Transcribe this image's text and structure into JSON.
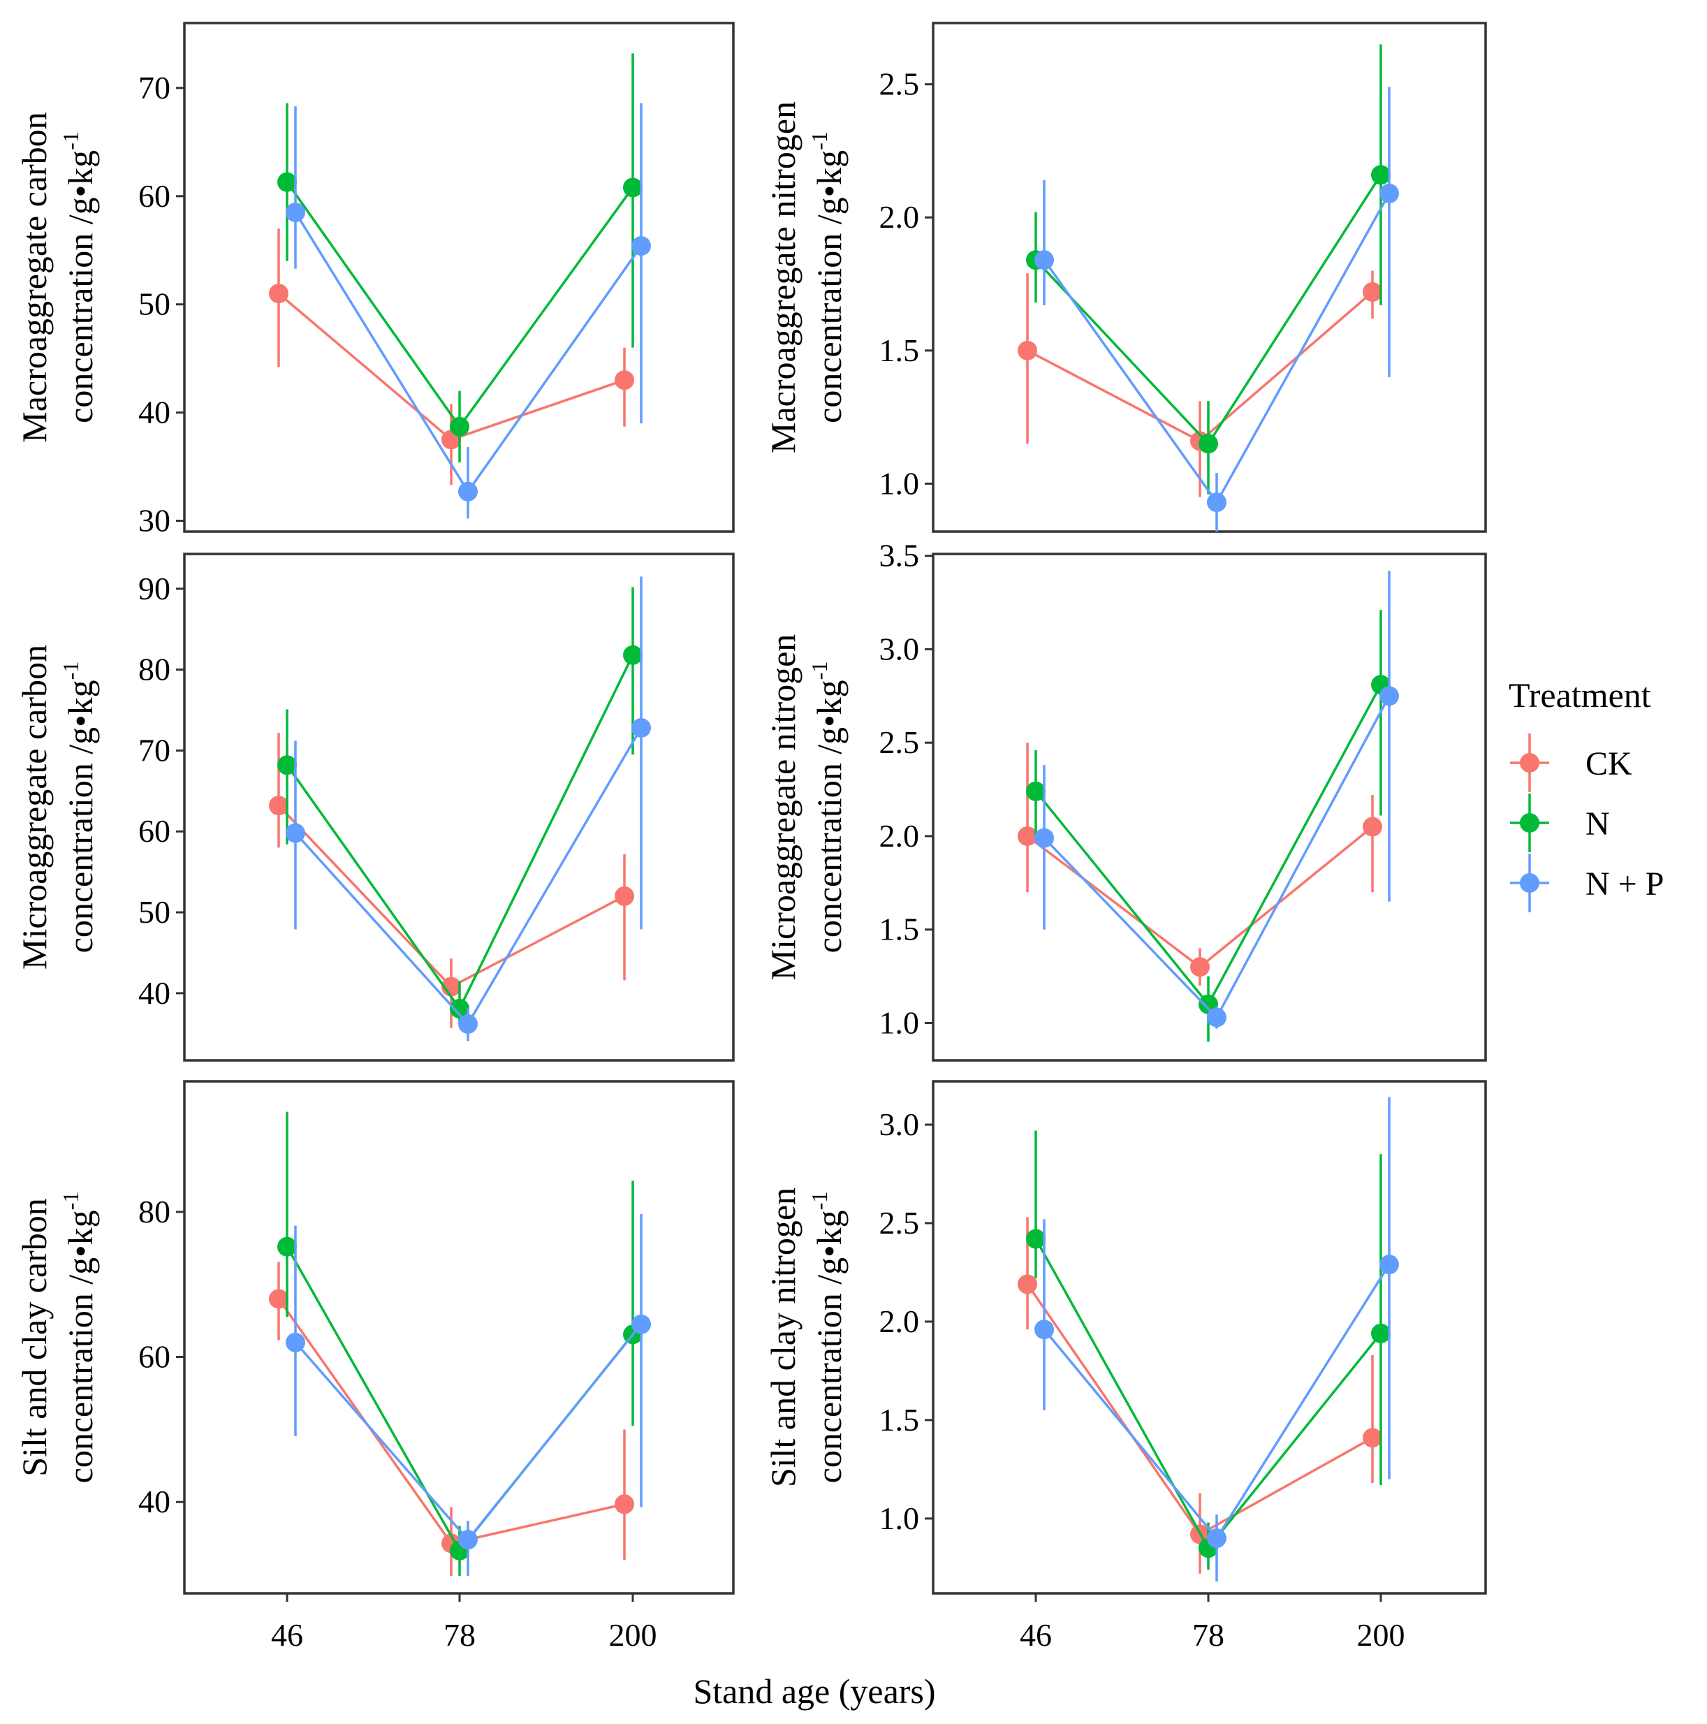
{
  "figure": {
    "xlabel": "Stand age (years)",
    "categories": [
      "46",
      "78",
      "200"
    ]
  },
  "legend": {
    "title": "Treatment",
    "items": [
      {
        "name": "CK",
        "color": "#F8766D"
      },
      {
        "name": "N",
        "color": "#00BA38"
      },
      {
        "name": "N + P",
        "color": "#619CFF"
      }
    ]
  },
  "chart_data": [
    {
      "type": "line",
      "panel": "top-left",
      "ylabel_line1": "Macroaggregate carbon",
      "ylabel_line2": "concentration /g•kg",
      "ylabel_sup": "-1",
      "ylim": [
        29,
        76
      ],
      "yticks": [
        30,
        40,
        50,
        60,
        70
      ],
      "categories": [
        "46",
        "78",
        "200"
      ],
      "series": [
        {
          "name": "CK",
          "values": [
            51,
            37.5,
            43
          ],
          "err_low": [
            44.2,
            33.3,
            38.7
          ],
          "err_high": [
            57,
            40.8,
            46
          ]
        },
        {
          "name": "N",
          "values": [
            61.3,
            38.7,
            60.8
          ],
          "err_low": [
            54,
            35.4,
            46
          ],
          "err_high": [
            68.6,
            42,
            73.2
          ]
        },
        {
          "name": "N + P",
          "values": [
            58.5,
            32.7,
            55.4
          ],
          "err_low": [
            53.3,
            30.2,
            39
          ],
          "err_high": [
            68.3,
            36.8,
            68.6
          ]
        }
      ]
    },
    {
      "type": "line",
      "panel": "top-right",
      "ylabel_line1": "Macroaggregate nitrogen",
      "ylabel_line2": "concentration /g•kg",
      "ylabel_sup": "-1",
      "ylim": [
        0.82,
        2.73
      ],
      "yticks": [
        1.0,
        1.5,
        2.0,
        2.5
      ],
      "categories": [
        "46",
        "78",
        "200"
      ],
      "series": [
        {
          "name": "CK",
          "values": [
            1.5,
            1.16,
            1.72
          ],
          "err_low": [
            1.15,
            0.95,
            1.62
          ],
          "err_high": [
            1.79,
            1.31,
            1.8
          ]
        },
        {
          "name": "N",
          "values": [
            1.84,
            1.15,
            2.16
          ],
          "err_low": [
            1.68,
            0.96,
            1.67
          ],
          "err_high": [
            2.02,
            1.31,
            2.65
          ]
        },
        {
          "name": "N + P",
          "values": [
            1.84,
            0.93,
            2.09
          ],
          "err_low": [
            1.67,
            0.82,
            1.4
          ],
          "err_high": [
            2.14,
            1.04,
            2.49
          ]
        }
      ]
    },
    {
      "type": "line",
      "panel": "middle-left",
      "ylabel_line1": "Microaggregate carbon",
      "ylabel_line2": "concentration /g•kg",
      "ylabel_sup": "-1",
      "ylim": [
        31.7,
        94.3
      ],
      "yticks": [
        40,
        50,
        60,
        70,
        80,
        90
      ],
      "categories": [
        "46",
        "78",
        "200"
      ],
      "series": [
        {
          "name": "CK",
          "values": [
            63.2,
            40.8,
            52
          ],
          "err_low": [
            58,
            35.7,
            41.6
          ],
          "err_high": [
            72.2,
            44.3,
            57.2
          ]
        },
        {
          "name": "N",
          "values": [
            68.2,
            38.1,
            81.8
          ],
          "err_low": [
            58.4,
            36.2,
            69.5
          ],
          "err_high": [
            75.1,
            41.5,
            90.2
          ]
        },
        {
          "name": "N + P",
          "values": [
            59.8,
            36.2,
            72.8
          ],
          "err_low": [
            47.9,
            34.1,
            47.9
          ],
          "err_high": [
            71.2,
            38.2,
            91.5
          ]
        }
      ]
    },
    {
      "type": "line",
      "panel": "middle-right",
      "ylabel_line1": "Microaggregate nitrogen",
      "ylabel_line2": "concentration /g•kg",
      "ylabel_sup": "-1",
      "ylim": [
        0.8,
        3.51
      ],
      "yticks": [
        1.0,
        1.5,
        2.0,
        2.5,
        3.0,
        3.5
      ],
      "categories": [
        "46",
        "78",
        "200"
      ],
      "series": [
        {
          "name": "CK",
          "values": [
            2.0,
            1.3,
            2.05
          ],
          "err_low": [
            1.7,
            1.2,
            1.7
          ],
          "err_high": [
            2.5,
            1.4,
            2.22
          ]
        },
        {
          "name": "N",
          "values": [
            2.24,
            1.1,
            2.81
          ],
          "err_low": [
            1.98,
            0.9,
            2.11
          ],
          "err_high": [
            2.46,
            1.25,
            3.21
          ]
        },
        {
          "name": "N + P",
          "values": [
            1.99,
            1.03,
            2.75
          ],
          "err_low": [
            1.5,
            0.97,
            1.65
          ],
          "err_high": [
            2.38,
            1.09,
            3.42
          ]
        }
      ]
    },
    {
      "type": "line",
      "panel": "bottom-left",
      "ylabel_line1": "Silt and clay carbon",
      "ylabel_line2": "concentration /g•kg",
      "ylabel_sup": "-1",
      "ylim": [
        27.4,
        98
      ],
      "yticks": [
        40,
        60,
        80
      ],
      "categories": [
        "46",
        "78",
        "200"
      ],
      "series": [
        {
          "name": "CK",
          "values": [
            68,
            34.3,
            39.7
          ],
          "err_low": [
            62.3,
            29.8,
            32
          ],
          "err_high": [
            73.1,
            39.3,
            50
          ]
        },
        {
          "name": "N",
          "values": [
            75.2,
            33.3,
            63.1
          ],
          "err_low": [
            65.5,
            29.8,
            50.5
          ],
          "err_high": [
            93.8,
            36.7,
            84.3
          ]
        },
        {
          "name": "N + P",
          "values": [
            62,
            34.8,
            64.5
          ],
          "err_low": [
            49.1,
            29.8,
            39.3
          ],
          "err_high": [
            78.1,
            37.4,
            79.7
          ]
        }
      ]
    },
    {
      "type": "line",
      "panel": "bottom-right",
      "ylabel_line1": "Silt and clay nitrogen",
      "ylabel_line2": "concentration /g•kg",
      "ylabel_sup": "-1",
      "ylim": [
        0.62,
        3.22
      ],
      "yticks": [
        1.0,
        1.5,
        2.0,
        2.5,
        3.0
      ],
      "categories": [
        "46",
        "78",
        "200"
      ],
      "series": [
        {
          "name": "CK",
          "values": [
            2.19,
            0.92,
            1.41
          ],
          "err_low": [
            1.96,
            0.72,
            1.18
          ],
          "err_high": [
            2.53,
            1.13,
            1.83
          ]
        },
        {
          "name": "N",
          "values": [
            2.42,
            0.85,
            1.94
          ],
          "err_low": [
            2.22,
            0.74,
            1.17
          ],
          "err_high": [
            2.97,
            0.98,
            2.85
          ]
        },
        {
          "name": "N + P",
          "values": [
            1.96,
            0.9,
            2.29
          ],
          "err_low": [
            1.55,
            0.68,
            1.2
          ],
          "err_high": [
            2.52,
            1.02,
            3.14
          ]
        }
      ]
    }
  ]
}
